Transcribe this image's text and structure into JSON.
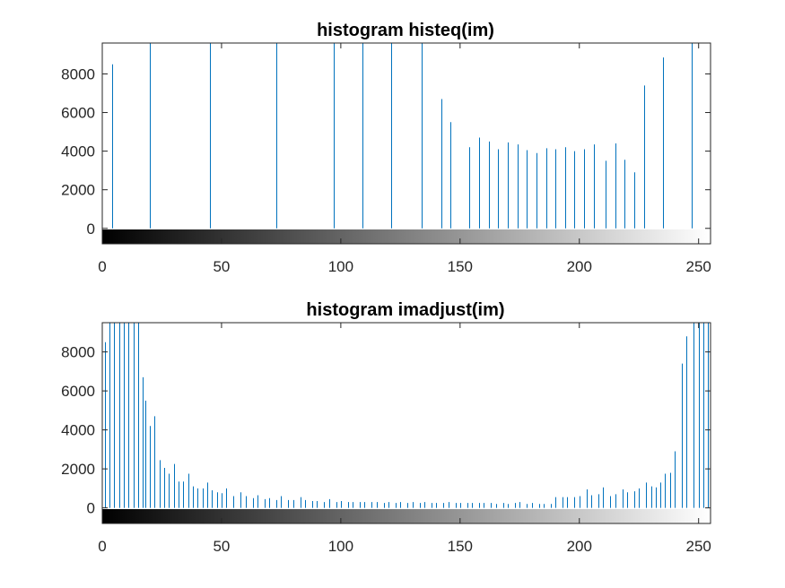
{
  "chart_data": [
    {
      "type": "bar",
      "style": "stem",
      "title": "histogram histeq(im)",
      "xlabel": "",
      "ylabel": "",
      "xlim": [
        0,
        255
      ],
      "ylim": [
        -800,
        9600
      ],
      "xticks": [
        0,
        50,
        100,
        150,
        200,
        250
      ],
      "yticks": [
        0,
        2000,
        4000,
        6000,
        8000
      ],
      "grid": false,
      "colorbar": "grayscale 0-255",
      "stem_color": "#0072BD",
      "x": [
        4,
        20,
        45,
        73,
        97,
        109,
        121,
        134,
        142,
        146,
        154,
        158,
        162,
        166,
        170,
        174,
        178,
        182,
        186,
        190,
        194,
        198,
        202,
        206,
        211,
        215,
        219,
        223,
        227,
        235,
        247
      ],
      "values": [
        8500,
        9600,
        9600,
        9600,
        9600,
        9600,
        9600,
        9600,
        6700,
        5500,
        4200,
        4700,
        4500,
        4100,
        4450,
        4350,
        4050,
        3900,
        4150,
        4100,
        4200,
        4000,
        4100,
        4350,
        3500,
        4400,
        3550,
        2900,
        7400,
        8850,
        9600
      ]
    },
    {
      "type": "bar",
      "style": "stem",
      "title": "histogram imadjust(im)",
      "xlabel": "",
      "ylabel": "",
      "xlim": [
        0,
        255
      ],
      "ylim": [
        -800,
        9500
      ],
      "xticks": [
        0,
        50,
        100,
        150,
        200,
        250
      ],
      "yticks": [
        0,
        2000,
        4000,
        6000,
        8000
      ],
      "grid": false,
      "colorbar": "grayscale 0-255",
      "stem_color": "#0072BD",
      "x": [
        1,
        3,
        5,
        7,
        9,
        11,
        13,
        15,
        17,
        18,
        20,
        22,
        24,
        26,
        28,
        30,
        32,
        34,
        36,
        38,
        40,
        42,
        44,
        46,
        48,
        50,
        52,
        55,
        58,
        60,
        63,
        65,
        68,
        70,
        73,
        75,
        78,
        80,
        83,
        85,
        88,
        90,
        93,
        95,
        98,
        100,
        103,
        105,
        108,
        110,
        113,
        115,
        118,
        120,
        123,
        125,
        128,
        130,
        133,
        135,
        138,
        140,
        143,
        145,
        148,
        150,
        153,
        155,
        158,
        160,
        163,
        165,
        168,
        170,
        173,
        175,
        178,
        180,
        183,
        185,
        188,
        190,
        193,
        195,
        198,
        200,
        203,
        205,
        208,
        210,
        213,
        215,
        218,
        220,
        223,
        225,
        228,
        230,
        232,
        234,
        236,
        238,
        240,
        243,
        245,
        248,
        250,
        252,
        254
      ],
      "values": [
        8500,
        9500,
        9500,
        9500,
        9500,
        9500,
        9500,
        9500,
        6700,
        5500,
        4200,
        4700,
        2450,
        2050,
        1750,
        2250,
        1350,
        1350,
        1750,
        1100,
        1000,
        1000,
        1300,
        900,
        800,
        750,
        1000,
        600,
        800,
        600,
        500,
        650,
        450,
        500,
        400,
        600,
        400,
        400,
        550,
        400,
        350,
        350,
        300,
        450,
        300,
        350,
        300,
        300,
        300,
        300,
        300,
        300,
        250,
        300,
        250,
        300,
        250,
        300,
        250,
        300,
        250,
        250,
        250,
        300,
        250,
        250,
        250,
        250,
        250,
        250,
        250,
        200,
        250,
        200,
        250,
        300,
        200,
        250,
        200,
        200,
        200,
        550,
        550,
        550,
        550,
        600,
        950,
        650,
        700,
        1050,
        600,
        700,
        950,
        800,
        850,
        1000,
        1300,
        1100,
        1050,
        1300,
        1750,
        1800,
        2900,
        7400,
        8800,
        9500,
        9500,
        9500,
        9500
      ]
    }
  ]
}
